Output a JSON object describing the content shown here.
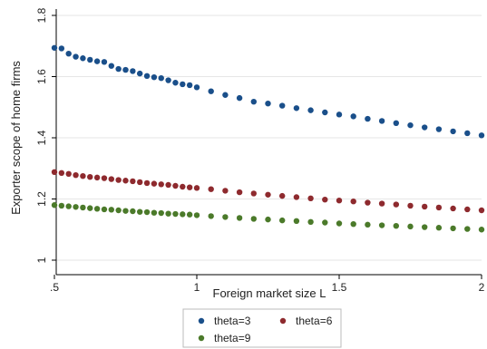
{
  "chart_data": {
    "type": "scatter",
    "title": "",
    "xlabel": "Foreign market size L",
    "ylabel": "Exporter scope of home firms",
    "xlim": [
      0.5,
      2.0
    ],
    "ylim": [
      1.0,
      1.8
    ],
    "xticks": [
      0.5,
      1.0,
      1.5,
      2.0
    ],
    "xtick_labels": [
      ".5",
      "1",
      "1.5",
      "2"
    ],
    "yticks": [
      1.0,
      1.2,
      1.4,
      1.6,
      1.8
    ],
    "ytick_labels": [
      "1",
      "1.2",
      "1.4",
      "1.6",
      "1.8"
    ],
    "grid": true,
    "legend_position": "bottom",
    "x": [
      0.5,
      0.525,
      0.55,
      0.575,
      0.6,
      0.625,
      0.65,
      0.675,
      0.7,
      0.725,
      0.75,
      0.775,
      0.8,
      0.825,
      0.85,
      0.875,
      0.9,
      0.925,
      0.95,
      0.975,
      1.0,
      1.05,
      1.1,
      1.15,
      1.2,
      1.25,
      1.3,
      1.35,
      1.4,
      1.45,
      1.5,
      1.55,
      1.6,
      1.65,
      1.7,
      1.75,
      1.8,
      1.85,
      1.9,
      1.95,
      2.0
    ],
    "series": [
      {
        "name": "theta=3",
        "color": "#1a4f8a",
        "values": [
          1.694,
          1.692,
          1.675,
          1.665,
          1.66,
          1.655,
          1.65,
          1.648,
          1.635,
          1.625,
          1.622,
          1.618,
          1.61,
          1.602,
          1.598,
          1.595,
          1.588,
          1.58,
          1.575,
          1.572,
          1.565,
          1.552,
          1.54,
          1.53,
          1.518,
          1.512,
          1.505,
          1.497,
          1.49,
          1.483,
          1.476,
          1.47,
          1.462,
          1.455,
          1.448,
          1.441,
          1.434,
          1.428,
          1.421,
          1.415,
          1.408
        ]
      },
      {
        "name": "theta=6",
        "color": "#8e2a2e",
        "values": [
          1.288,
          1.285,
          1.282,
          1.278,
          1.275,
          1.272,
          1.27,
          1.268,
          1.265,
          1.262,
          1.26,
          1.258,
          1.255,
          1.252,
          1.25,
          1.248,
          1.246,
          1.243,
          1.24,
          1.238,
          1.236,
          1.232,
          1.227,
          1.222,
          1.218,
          1.214,
          1.21,
          1.206,
          1.202,
          1.198,
          1.195,
          1.192,
          1.188,
          1.185,
          1.182,
          1.178,
          1.175,
          1.172,
          1.169,
          1.166,
          1.163
        ]
      },
      {
        "name": "theta=9",
        "color": "#4b7a2a",
        "values": [
          1.18,
          1.178,
          1.176,
          1.174,
          1.172,
          1.17,
          1.168,
          1.166,
          1.165,
          1.163,
          1.161,
          1.16,
          1.158,
          1.157,
          1.155,
          1.154,
          1.152,
          1.151,
          1.15,
          1.149,
          1.147,
          1.144,
          1.141,
          1.138,
          1.135,
          1.133,
          1.13,
          1.128,
          1.125,
          1.123,
          1.12,
          1.118,
          1.116,
          1.114,
          1.112,
          1.11,
          1.108,
          1.106,
          1.104,
          1.102,
          1.1
        ]
      }
    ]
  }
}
